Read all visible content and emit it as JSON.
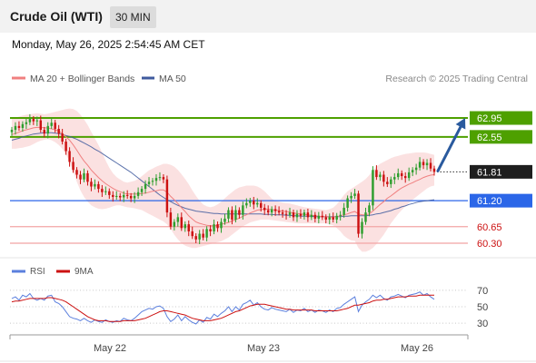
{
  "header": {
    "title": "Crude Oil (WTI)",
    "timeframe": "30 MIN"
  },
  "datetime": "Monday, May 26, 2025 2:54:45 AM CET",
  "legend": {
    "ma20": "MA 20 + Bollinger Bands",
    "ma50": "MA 50",
    "rsi": "RSI",
    "rsi_ma": "9MA"
  },
  "credit": "Research © 2025 Trading Central",
  "colors": {
    "bull": "#2e9e2e",
    "bear": "#cc1111",
    "ma20": "#f08080",
    "ma50": "#3f5a9e",
    "band": "#fadcdc",
    "green_level": "#4ea000",
    "blue_level": "#2b66e8",
    "red_level": "#f2a5a5",
    "rsi": "#5b7fdd",
    "rsi_ma": "#cc1111",
    "arrow": "#2a5a9e"
  },
  "chart_data": [
    {
      "type": "candlestick",
      "title": "Crude Oil (WTI)",
      "timeframe": "30 MIN",
      "x_ticks": [
        "May 22",
        "May 23",
        "May 26"
      ],
      "ylim": [
        60.05,
        63.2
      ],
      "last_price": 61.81,
      "levels": [
        {
          "value": 62.95,
          "label": "62.95",
          "kind": "green"
        },
        {
          "value": 62.55,
          "label": "62.55",
          "kind": "green"
        },
        {
          "value": 61.81,
          "label": "61.81",
          "kind": "last"
        },
        {
          "value": 61.2,
          "label": "61.20",
          "kind": "blue"
        },
        {
          "value": 60.65,
          "label": "60.65",
          "kind": "red"
        },
        {
          "value": 60.3,
          "label": "60.30",
          "kind": "red"
        }
      ],
      "closes": [
        62.7,
        62.78,
        62.74,
        62.82,
        62.86,
        62.93,
        62.88,
        62.9,
        62.7,
        62.62,
        62.78,
        62.85,
        62.72,
        62.62,
        62.45,
        62.25,
        62.02,
        61.85,
        61.75,
        61.65,
        61.78,
        61.6,
        61.5,
        61.55,
        61.45,
        61.38,
        61.4,
        61.32,
        61.28,
        61.3,
        61.27,
        61.32,
        61.3,
        61.25,
        61.3,
        61.38,
        61.45,
        61.55,
        61.6,
        61.62,
        61.68,
        61.7,
        61.65,
        60.95,
        60.65,
        60.75,
        60.85,
        60.62,
        60.7,
        60.55,
        60.45,
        60.38,
        60.5,
        60.42,
        60.6,
        60.55,
        60.7,
        60.62,
        60.75,
        60.82,
        61.0,
        60.8,
        61.0,
        60.9,
        61.1,
        61.15,
        61.2,
        61.12,
        61.15,
        61.05,
        61.0,
        60.95,
        61.02,
        60.98,
        60.95,
        60.92,
        60.9,
        60.95,
        60.85,
        60.92,
        60.88,
        60.95,
        60.85,
        60.9,
        60.82,
        60.88,
        60.85,
        60.8,
        60.85,
        60.8,
        60.88,
        60.9,
        61.05,
        61.25,
        61.3,
        61.35,
        60.5,
        60.75,
        60.95,
        61.1,
        61.85,
        61.7,
        61.75,
        61.6,
        61.55,
        61.65,
        61.7,
        61.78,
        61.72,
        61.68,
        61.8,
        61.85,
        61.9,
        62.02,
        61.95,
        62.0,
        61.88,
        61.81
      ],
      "ma20": [
        62.6,
        62.62,
        62.65,
        62.68,
        62.7,
        62.72,
        62.74,
        62.75,
        62.75,
        62.74,
        62.74,
        62.72,
        62.7,
        62.67,
        62.62,
        62.55,
        62.48,
        62.38,
        62.27,
        62.15,
        62.04,
        61.95,
        61.85,
        61.77,
        61.69,
        61.62,
        61.56,
        61.51,
        61.46,
        61.42,
        61.39,
        61.36,
        61.34,
        61.34,
        61.34,
        61.34,
        61.35,
        61.36,
        61.38,
        61.4,
        61.41,
        61.43,
        61.43,
        61.38,
        61.29,
        61.22,
        61.14,
        61.05,
        60.97,
        60.88,
        60.81,
        60.75,
        60.72,
        60.7,
        60.68,
        60.67,
        60.67,
        60.68,
        60.7,
        60.72,
        60.74,
        60.77,
        60.8,
        60.83,
        60.87,
        60.9,
        60.94,
        60.97,
        61.0,
        61.01,
        61.02,
        61.02,
        61.01,
        61.0,
        60.99,
        60.98,
        60.97,
        60.96,
        60.94,
        60.93,
        60.92,
        60.91,
        60.9,
        60.89,
        60.88,
        60.87,
        60.86,
        60.86,
        60.85,
        60.85,
        60.86,
        60.88,
        60.9,
        60.92,
        60.95,
        60.97,
        60.92,
        60.9,
        60.9,
        60.92,
        60.98,
        61.05,
        61.12,
        61.18,
        61.25,
        61.3,
        61.36,
        61.42,
        61.47,
        61.51,
        61.55,
        61.58,
        61.62,
        61.65,
        61.69,
        61.72,
        61.74,
        61.75
      ],
      "ma50": [
        62.48,
        62.5,
        62.52,
        62.55,
        62.57,
        62.59,
        62.61,
        62.62,
        62.63,
        62.64,
        62.64,
        62.64,
        62.63,
        62.62,
        62.6,
        62.58,
        62.56,
        62.53,
        62.5,
        62.46,
        62.42,
        62.38,
        62.34,
        62.29,
        62.25,
        62.2,
        62.15,
        62.1,
        62.05,
        62.0,
        61.95,
        61.9,
        61.85,
        61.8,
        61.74,
        61.68,
        61.62,
        61.56,
        61.5,
        61.44,
        61.38,
        61.32,
        61.27,
        61.22,
        61.18,
        61.14,
        61.1,
        61.07,
        61.04,
        61.02,
        61.0,
        60.98,
        60.97,
        60.96,
        60.95,
        60.94,
        60.93,
        60.93,
        60.92,
        60.92,
        60.92,
        60.92,
        60.92,
        60.92,
        60.92,
        60.92,
        60.92,
        60.92,
        60.92,
        60.92,
        60.91,
        60.91,
        60.91,
        60.9,
        60.9,
        60.9,
        60.89,
        60.89,
        60.88,
        60.88,
        60.87,
        60.87,
        60.87,
        60.87,
        60.86,
        60.86,
        60.86,
        60.86,
        60.86,
        60.86,
        60.86,
        60.86,
        60.87,
        60.87,
        60.88,
        60.88,
        60.88,
        60.88,
        60.88,
        60.89,
        60.9,
        60.92,
        60.93,
        60.95,
        60.97,
        60.99,
        61.02,
        61.04,
        61.07,
        61.09,
        61.12,
        61.14,
        61.16,
        61.18,
        61.19,
        61.2,
        61.21,
        61.22
      ],
      "band_upper": [
        62.95,
        62.96,
        62.98,
        63.0,
        63.02,
        63.03,
        63.04,
        63.05,
        63.04,
        63.03,
        63.04,
        63.06,
        63.08,
        63.1,
        63.12,
        63.14,
        63.15,
        63.14,
        63.1,
        63.02,
        62.92,
        62.8,
        62.66,
        62.52,
        62.38,
        62.22,
        62.05,
        61.9,
        61.78,
        61.7,
        61.65,
        61.6,
        61.58,
        61.6,
        61.62,
        61.66,
        61.72,
        61.78,
        61.84,
        61.88,
        61.92,
        61.95,
        61.98,
        61.98,
        61.96,
        61.92,
        61.85,
        61.76,
        61.66,
        61.55,
        61.42,
        61.3,
        61.2,
        61.12,
        61.08,
        61.06,
        61.08,
        61.12,
        61.18,
        61.25,
        61.32,
        61.38,
        61.44,
        61.48,
        61.5,
        61.52,
        61.52,
        61.52,
        61.5,
        61.46,
        61.4,
        61.32,
        61.24,
        61.2,
        61.18,
        61.16,
        61.15,
        61.14,
        61.12,
        61.1,
        61.08,
        61.06,
        61.05,
        61.04,
        61.03,
        61.02,
        61.01,
        61.0,
        61.02,
        61.05,
        61.12,
        61.22,
        61.32,
        61.4,
        61.45,
        61.5,
        61.55,
        61.6,
        61.66,
        61.74,
        61.84,
        61.92,
        61.98,
        62.02,
        62.06,
        62.1,
        62.13,
        62.15,
        62.17,
        62.19,
        62.2,
        62.21,
        62.22,
        62.22,
        62.22,
        62.21,
        62.19,
        62.17
      ],
      "band_lower": [
        62.3,
        62.3,
        62.31,
        62.32,
        62.34,
        62.36,
        62.4,
        62.44,
        62.47,
        62.49,
        62.5,
        62.48,
        62.44,
        62.38,
        62.3,
        62.18,
        62.02,
        61.82,
        61.6,
        61.42,
        61.28,
        61.18,
        61.1,
        61.06,
        61.03,
        61.02,
        61.03,
        61.05,
        61.08,
        61.1,
        61.1,
        61.08,
        61.06,
        61.05,
        61.04,
        61.02,
        61.0,
        60.96,
        60.92,
        60.88,
        60.84,
        60.8,
        60.76,
        60.7,
        60.6,
        60.48,
        60.38,
        60.3,
        60.25,
        60.22,
        60.2,
        60.2,
        60.22,
        60.24,
        60.26,
        60.28,
        60.3,
        60.32,
        60.34,
        60.38,
        60.42,
        60.48,
        60.54,
        60.6,
        60.66,
        60.7,
        60.74,
        60.76,
        60.78,
        60.8,
        60.8,
        60.8,
        60.79,
        60.78,
        60.77,
        60.76,
        60.75,
        60.74,
        60.73,
        60.72,
        60.72,
        60.72,
        60.72,
        60.72,
        60.72,
        60.72,
        60.72,
        60.72,
        60.7,
        60.68,
        60.62,
        60.55,
        60.46,
        60.4,
        60.36,
        60.35,
        60.2,
        60.12,
        60.12,
        60.15,
        60.2,
        60.28,
        60.38,
        60.48,
        60.6,
        60.72,
        60.82,
        60.92,
        61.0,
        61.08,
        61.15,
        61.22,
        61.28,
        61.34,
        61.4,
        61.46,
        61.5,
        61.52
      ],
      "forecast_arrow": {
        "from": 61.81,
        "to": 62.95
      }
    },
    {
      "type": "line",
      "title": "RSI",
      "yticks": [
        70,
        50,
        30
      ],
      "ylim": [
        18,
        82
      ],
      "series": [
        {
          "name": "RSI",
          "values": [
            60,
            62,
            58,
            64,
            62,
            66,
            60,
            58,
            60,
            58,
            63,
            64,
            56,
            54,
            50,
            44,
            38,
            36,
            35,
            33,
            36,
            33,
            31,
            34,
            32,
            31,
            34,
            32,
            31,
            33,
            32,
            36,
            34,
            33,
            36,
            40,
            44,
            46,
            48,
            47,
            50,
            51,
            48,
            38,
            32,
            35,
            40,
            33,
            38,
            34,
            31,
            29,
            34,
            31,
            37,
            35,
            41,
            38,
            42,
            45,
            50,
            44,
            50,
            46,
            53,
            55,
            58,
            52,
            55,
            50,
            47,
            46,
            49,
            47,
            46,
            45,
            44,
            47,
            43,
            46,
            45,
            48,
            44,
            46,
            43,
            46,
            45,
            43,
            46,
            44,
            48,
            49,
            53,
            56,
            59,
            62,
            44,
            52,
            56,
            59,
            64,
            61,
            64,
            60,
            58,
            62,
            63,
            65,
            63,
            61,
            64,
            65,
            66,
            68,
            64,
            66,
            62,
            59
          ]
        },
        {
          "name": "9MA",
          "values": [
            56,
            57,
            57,
            58,
            59,
            60,
            60,
            60,
            60,
            60,
            61,
            61,
            60,
            59,
            58,
            56,
            53,
            50,
            47,
            44,
            41,
            38,
            36,
            34,
            33,
            33,
            33,
            32,
            32,
            32,
            32,
            33,
            33,
            33,
            33,
            34,
            35,
            36,
            38,
            40,
            42,
            44,
            45,
            45,
            44,
            43,
            42,
            41,
            40,
            38,
            36,
            35,
            34,
            33,
            33,
            33,
            34,
            35,
            36,
            38,
            40,
            42,
            44,
            45,
            47,
            49,
            51,
            52,
            53,
            53,
            53,
            52,
            51,
            50,
            49,
            48,
            47,
            47,
            46,
            46,
            46,
            46,
            46,
            46,
            45,
            45,
            45,
            45,
            45,
            45,
            45,
            46,
            47,
            48,
            50,
            52,
            52,
            53,
            54,
            55,
            57,
            58,
            58,
            59,
            59,
            60,
            61,
            62,
            62,
            62,
            63,
            63,
            63,
            64,
            64,
            64,
            64,
            64
          ]
        }
      ]
    }
  ]
}
